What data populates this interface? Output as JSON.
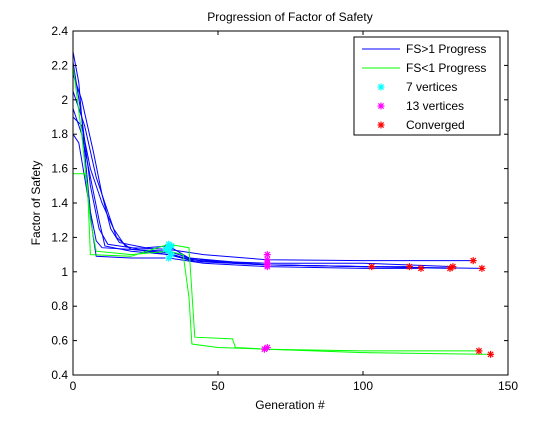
{
  "chart_data": {
    "type": "line",
    "title": "Progression of Factor of Safety",
    "xlabel": "Generation #",
    "ylabel": "Factor of Safety",
    "xlim": [
      0,
      150
    ],
    "ylim": [
      0.4,
      2.4
    ],
    "xticks": [
      0,
      50,
      100,
      150
    ],
    "yticks": [
      0.4,
      0.6,
      0.8,
      1,
      1.2,
      1.4,
      1.6,
      1.8,
      2,
      2.2,
      2.4
    ],
    "xtick_labels": [
      "0",
      "50",
      "100",
      "150"
    ],
    "ytick_labels": [
      "0.4",
      "0.6",
      "0.8",
      "1",
      "1.2",
      "1.4",
      "1.6",
      "1.8",
      "2",
      "2.2",
      "2.4"
    ],
    "grid": false,
    "legend_position": "top-right",
    "legend": [
      {
        "label": "FS>1 Progress",
        "kind": "line",
        "color": "#0000ff"
      },
      {
        "label": "FS<1 Progress",
        "kind": "line",
        "color": "#00ff00"
      },
      {
        "label": "7 vertices",
        "kind": "star",
        "color": "#00ffff"
      },
      {
        "label": "13 vertices",
        "kind": "star",
        "color": "#ff00ff"
      },
      {
        "label": "Converged",
        "kind": "star",
        "color": "#ff0000"
      }
    ],
    "series": [
      {
        "group": "FS>1 Progress",
        "color": "#0000ff",
        "points": [
          [
            0,
            2.28
          ],
          [
            2,
            2.1
          ],
          [
            4,
            1.7
          ],
          [
            6,
            1.35
          ],
          [
            8,
            1.18
          ],
          [
            10,
            1.14
          ],
          [
            20,
            1.13
          ],
          [
            33,
            1.12
          ],
          [
            40,
            1.08
          ],
          [
            50,
            1.06
          ],
          [
            67,
            1.05
          ],
          [
            100,
            1.05
          ],
          [
            131,
            1.03
          ]
        ]
      },
      {
        "group": "FS>1 Progress",
        "color": "#0000ff",
        "points": [
          [
            0,
            2.22
          ],
          [
            3,
            1.9
          ],
          [
            6,
            1.5
          ],
          [
            9,
            1.25
          ],
          [
            12,
            1.16
          ],
          [
            20,
            1.14
          ],
          [
            33,
            1.13
          ],
          [
            45,
            1.1
          ],
          [
            67,
            1.07
          ],
          [
            100,
            1.065
          ],
          [
            138,
            1.065
          ]
        ]
      },
      {
        "group": "FS>1 Progress",
        "color": "#0000ff",
        "points": [
          [
            0,
            2.15
          ],
          [
            3,
            2.0
          ],
          [
            7,
            1.7
          ],
          [
            10,
            1.45
          ],
          [
            13,
            1.25
          ],
          [
            16,
            1.17
          ],
          [
            25,
            1.14
          ],
          [
            33,
            1.15
          ],
          [
            40,
            1.08
          ],
          [
            67,
            1.04
          ],
          [
            100,
            1.03
          ],
          [
            116,
            1.03
          ]
        ]
      },
      {
        "group": "FS>1 Progress",
        "color": "#0000ff",
        "points": [
          [
            0,
            2.05
          ],
          [
            4,
            1.85
          ],
          [
            8,
            1.55
          ],
          [
            12,
            1.35
          ],
          [
            15,
            1.2
          ],
          [
            20,
            1.13
          ],
          [
            33,
            1.11
          ],
          [
            40,
            1.07
          ],
          [
            67,
            1.04
          ],
          [
            100,
            1.03
          ],
          [
            130,
            1.02
          ]
        ]
      },
      {
        "group": "FS>1 Progress",
        "color": "#0000ff",
        "points": [
          [
            0,
            1.95
          ],
          [
            3,
            1.8
          ],
          [
            6,
            1.55
          ],
          [
            9,
            1.3
          ],
          [
            11,
            1.15
          ],
          [
            20,
            1.12
          ],
          [
            33,
            1.1
          ],
          [
            45,
            1.06
          ],
          [
            67,
            1.04
          ],
          [
            100,
            1.03
          ],
          [
            141,
            1.02
          ]
        ]
      },
      {
        "group": "FS>1 Progress",
        "color": "#0000ff",
        "points": [
          [
            0,
            1.9
          ],
          [
            3,
            1.85
          ],
          [
            6,
            1.6
          ],
          [
            10,
            1.4
          ],
          [
            14,
            1.25
          ],
          [
            18,
            1.15
          ],
          [
            25,
            1.12
          ],
          [
            33,
            1.1
          ],
          [
            42,
            1.06
          ],
          [
            67,
            1.04
          ],
          [
            103,
            1.03
          ]
        ]
      },
      {
        "group": "FS>1 Progress",
        "color": "#0000ff",
        "points": [
          [
            0,
            1.8
          ],
          [
            2,
            1.75
          ],
          [
            5,
            1.45
          ],
          [
            7,
            1.2
          ],
          [
            8,
            1.09
          ],
          [
            20,
            1.08
          ],
          [
            33,
            1.08
          ],
          [
            45,
            1.05
          ],
          [
            67,
            1.03
          ],
          [
            100,
            1.02
          ],
          [
            120,
            1.02
          ]
        ]
      },
      {
        "group": "FS<1 Progress",
        "color": "#00ff00",
        "points": [
          [
            0,
            2.2
          ],
          [
            3,
            1.8
          ],
          [
            6,
            1.3
          ],
          [
            8,
            1.12
          ],
          [
            20,
            1.1
          ],
          [
            33,
            1.12
          ],
          [
            38,
            1.1
          ],
          [
            40,
            0.85
          ],
          [
            41,
            0.58
          ],
          [
            50,
            0.56
          ],
          [
            67,
            0.55
          ],
          [
            100,
            0.54
          ],
          [
            140,
            0.54
          ]
        ]
      },
      {
        "group": "FS<1 Progress",
        "color": "#00ff00",
        "points": [
          [
            0,
            1.57
          ],
          [
            4,
            1.57
          ],
          [
            5,
            1.5
          ],
          [
            6,
            1.1
          ],
          [
            20,
            1.09
          ],
          [
            33,
            1.16
          ],
          [
            40,
            1.14
          ],
          [
            42,
            0.62
          ],
          [
            55,
            0.61
          ],
          [
            56,
            0.56
          ],
          [
            67,
            0.55
          ],
          [
            100,
            0.53
          ],
          [
            144,
            0.52
          ]
        ]
      }
    ],
    "markers_7_vertices": [
      [
        33,
        1.16
      ],
      [
        33,
        1.12
      ],
      [
        34,
        1.1
      ],
      [
        33,
        1.14
      ],
      [
        32,
        1.13
      ],
      [
        34,
        1.15
      ],
      [
        33,
        1.08
      ]
    ],
    "markers_13_vertices": [
      [
        67,
        1.1
      ],
      [
        67,
        1.07
      ],
      [
        67,
        1.05
      ],
      [
        67,
        1.04
      ],
      [
        67,
        1.03
      ],
      [
        67,
        0.56
      ],
      [
        66,
        0.55
      ]
    ],
    "markers_converged": [
      [
        103,
        1.03
      ],
      [
        116,
        1.03
      ],
      [
        120,
        1.02
      ],
      [
        130,
        1.02
      ],
      [
        131,
        1.03
      ],
      [
        138,
        1.065
      ],
      [
        141,
        1.02
      ],
      [
        140,
        0.54
      ],
      [
        144,
        0.52
      ]
    ]
  }
}
